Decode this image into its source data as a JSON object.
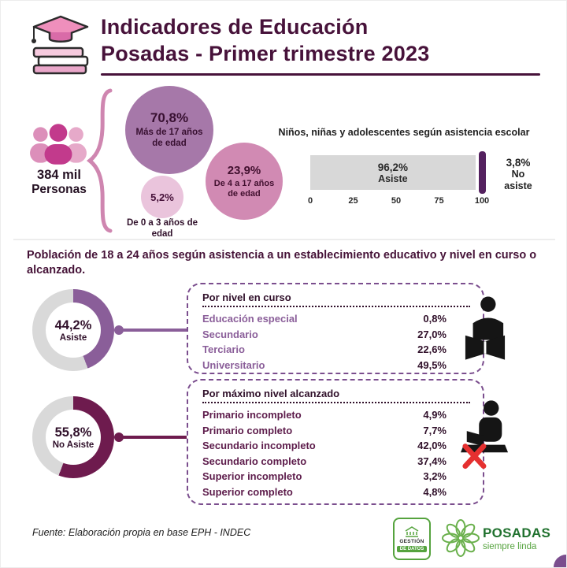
{
  "header": {
    "title_line1": "Indicadores de Educación",
    "title_line2": "Posadas - Primer trimestre 2023"
  },
  "population": {
    "total": "384 mil",
    "total_label": "Personas",
    "bubbles": [
      {
        "value": "70,8%",
        "label": "Más de 17 años de edad"
      },
      {
        "value": "23,9%",
        "label": "De 4 a 17 años de edad"
      },
      {
        "value": "5,2%",
        "label": "De 0 a 3 años de edad"
      }
    ]
  },
  "attendance_bar": {
    "title": "Niños, niñas y adolescentes según asistencia escolar",
    "asiste_value": "96,2%",
    "asiste_label": "Asiste",
    "asiste_pct": 96.2,
    "no_asiste_value": "3,8%",
    "no_asiste_label": "No asiste",
    "ticks": [
      "0",
      "25",
      "50",
      "75",
      "100"
    ]
  },
  "section2": {
    "title": "Población de 18 a 24 años según asistencia a un establecimiento educativo y nivel en curso o alcanzado."
  },
  "asiste": {
    "value": "44,2%",
    "label": "Asiste",
    "pct": 44.2,
    "box_title": "Por nivel en curso",
    "rows": [
      {
        "label": "Educación especial",
        "value": "0,8%"
      },
      {
        "label": "Secundario",
        "value": "27,0%"
      },
      {
        "label": "Terciario",
        "value": "22,6%"
      },
      {
        "label": "Universitario",
        "value": "49,5%"
      }
    ]
  },
  "no_asiste": {
    "value": "55,8%",
    "label": "No Asiste",
    "pct": 55.8,
    "box_title": "Por máximo nivel alcanzado",
    "rows": [
      {
        "label": "Primario incompleto",
        "value": "4,9%"
      },
      {
        "label": "Primario completo",
        "value": "7,7%"
      },
      {
        "label": "Secundario incompleto",
        "value": "42,0%"
      },
      {
        "label": "Secundario completo",
        "value": "37,4%"
      },
      {
        "label": "Superior incompleto",
        "value": "3,2%"
      },
      {
        "label": "Superior completo",
        "value": "4,8%"
      }
    ]
  },
  "footer": {
    "source": "Fuente: Elaboración propia en base EPH - INDEC",
    "badge_line1": "GESTIÓN",
    "badge_line2": "DE DATOS",
    "brand": "POSADAS",
    "brand_sub": "siempre linda"
  },
  "colors": {
    "plum": "#47123a",
    "purple": "#8a5e99",
    "pink": "#d18ab3",
    "light_pink": "#eac4dc",
    "maroon": "#6e1b4e",
    "track_gray": "#d9d9d9",
    "bar_gray": "#d8d8d8",
    "bar_purple": "#54215f",
    "green": "#55a33e"
  },
  "icons": {
    "header": "graduation-cap-books-icon",
    "population": "people-group-icon",
    "asiste_box": "person-reading-icon",
    "no_asiste_box": "person-not-studying-icon",
    "footer_badge": "data-management-badge-icon",
    "footer_logo": "posadas-flower-logo"
  },
  "chart_data": [
    {
      "type": "pie",
      "title": "384 mil Personas — distribución por edad",
      "categories": [
        "Más de 17 años de edad",
        "De 4 a 17 años de edad",
        "De 0 a 3 años de edad"
      ],
      "values": [
        70.8,
        23.9,
        5.2
      ]
    },
    {
      "type": "bar",
      "orientation": "horizontal",
      "title": "Niños, niñas y adolescentes según asistencia escolar",
      "categories": [
        "Asiste",
        "No asiste"
      ],
      "values": [
        96.2,
        3.8
      ],
      "xlim": [
        0,
        100
      ],
      "xticks": [
        0,
        25,
        50,
        75,
        100
      ]
    },
    {
      "type": "pie",
      "title": "Población de 18 a 24 años según asistencia a un establecimiento educativo",
      "categories": [
        "Asiste",
        "No Asiste"
      ],
      "values": [
        44.2,
        55.8
      ]
    },
    {
      "type": "table",
      "title": "Por nivel en curso",
      "categories": [
        "Educación especial",
        "Secundario",
        "Terciario",
        "Universitario"
      ],
      "values": [
        0.8,
        27.0,
        22.6,
        49.5
      ]
    },
    {
      "type": "table",
      "title": "Por máximo nivel alcanzado",
      "categories": [
        "Primario incompleto",
        "Primario completo",
        "Secundario incompleto",
        "Secundario completo",
        "Superior incompleto",
        "Superior completo"
      ],
      "values": [
        4.9,
        7.7,
        42.0,
        37.4,
        3.2,
        4.8
      ]
    }
  ]
}
